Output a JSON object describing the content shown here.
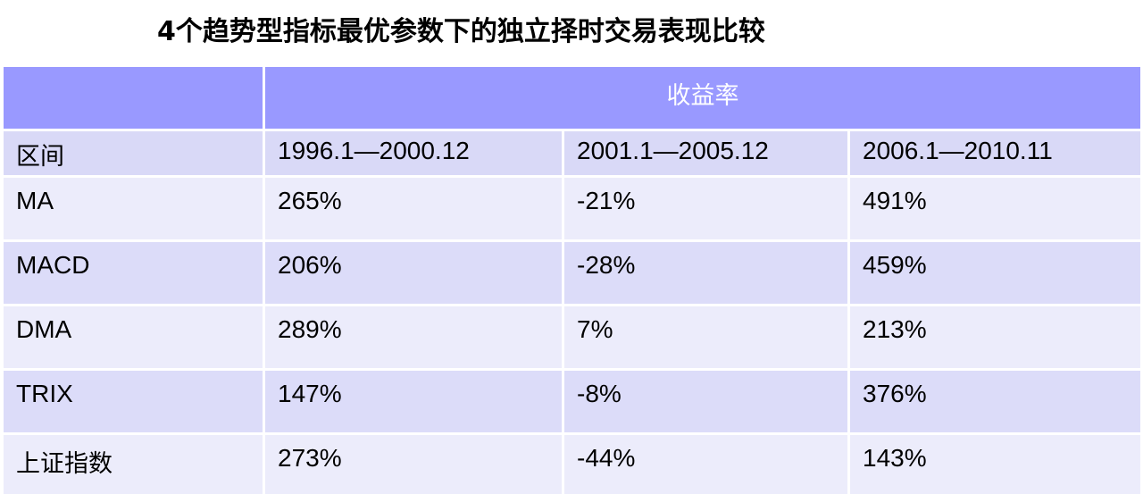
{
  "title": "4个趋势型指标最优参数下的独立择时交易表现比较",
  "table": {
    "group_header": "收益率",
    "corner_label": "区间",
    "periods": [
      "1996.1—2000.12",
      "2001.1—2005.12",
      "2006.1—2010.11"
    ],
    "rows": [
      {
        "name": "MA",
        "values": [
          "265%",
          "-21%",
          "491%"
        ]
      },
      {
        "name": "MACD",
        "values": [
          "206%",
          "-28%",
          "459%"
        ]
      },
      {
        "name": "DMA",
        "values": [
          "289%",
          "7%",
          "213%"
        ]
      },
      {
        "name": "TRIX",
        "values": [
          "147%",
          "-8%",
          "376%"
        ]
      },
      {
        "name": "上证指数",
        "values": [
          "273%",
          "-44%",
          "143%"
        ]
      }
    ]
  },
  "colors": {
    "header_bg": "#9999ff",
    "subheader_bg": "#d9d9f7",
    "row_light": "#ececfb",
    "row_dark": "#dcdcf9"
  }
}
